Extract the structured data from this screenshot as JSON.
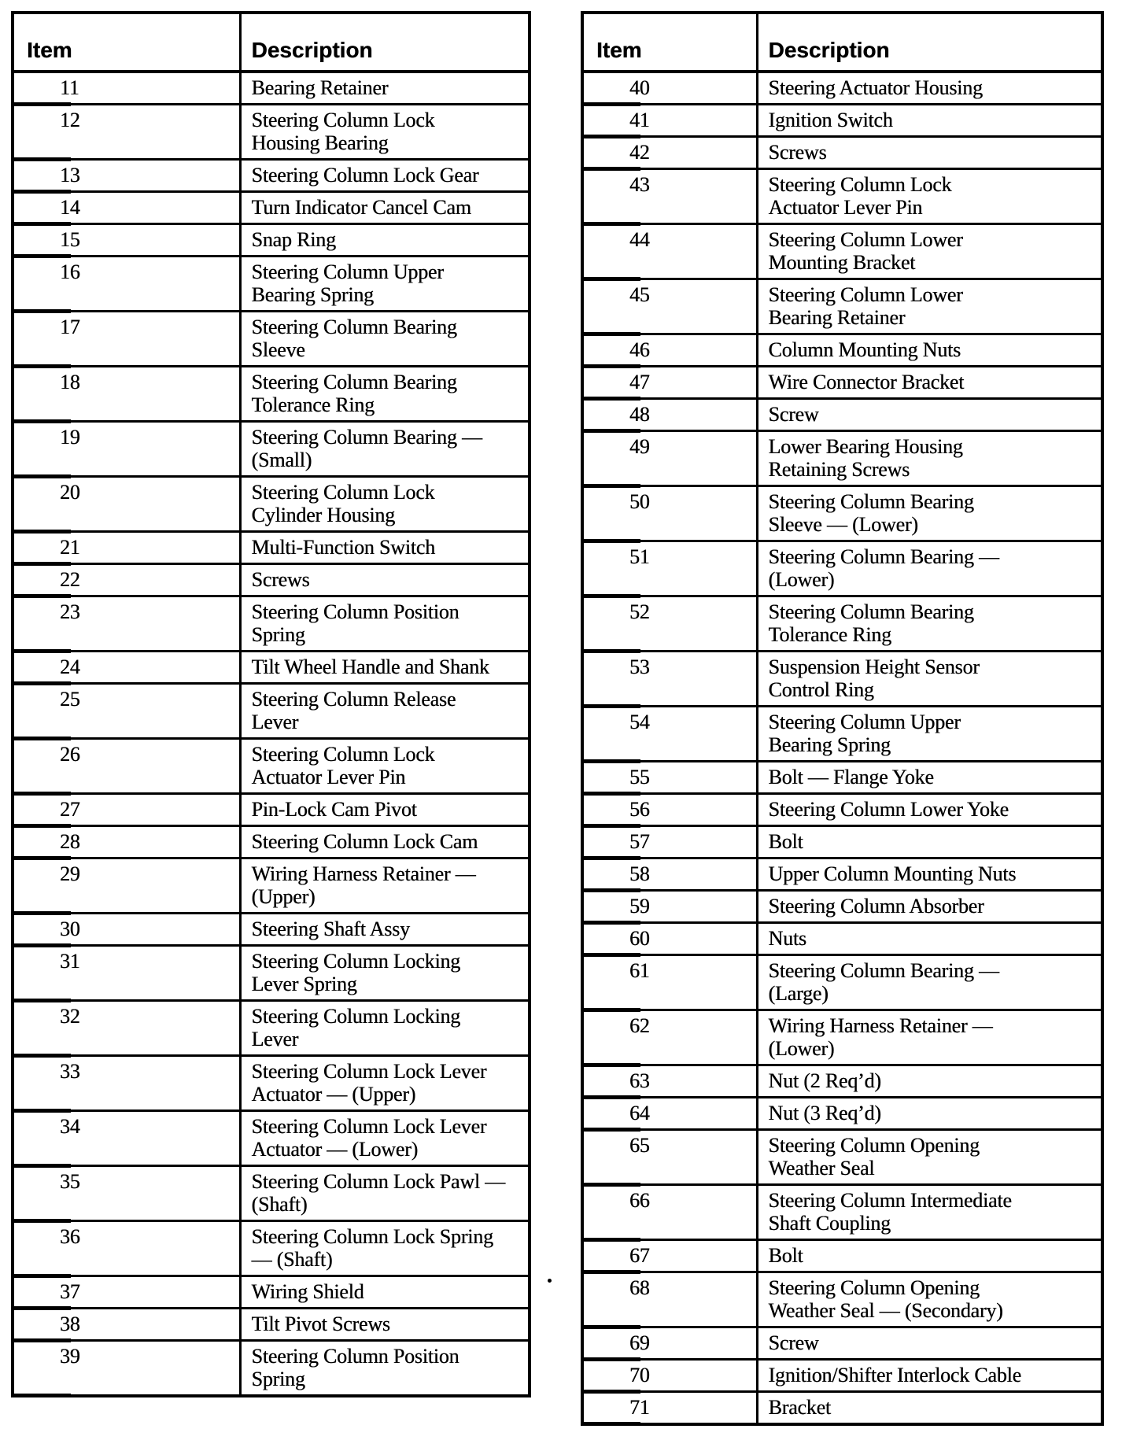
{
  "tables": [
    {
      "id": "left",
      "headers": {
        "item": "Item",
        "description": "Description"
      },
      "rows": [
        {
          "item": "11",
          "description": "Bearing Retainer"
        },
        {
          "item": "12",
          "description": "Steering Column Lock\nHousing Bearing"
        },
        {
          "item": "13",
          "description": "Steering Column Lock Gear"
        },
        {
          "item": "14",
          "description": "Turn Indicator Cancel Cam"
        },
        {
          "item": "15",
          "description": "Snap Ring"
        },
        {
          "item": "16",
          "description": "Steering Column Upper\nBearing Spring"
        },
        {
          "item": "17",
          "description": "Steering Column Bearing\nSleeve"
        },
        {
          "item": "18",
          "description": "Steering Column Bearing\nTolerance Ring"
        },
        {
          "item": "19",
          "description": "Steering Column Bearing —\n(Small)"
        },
        {
          "item": "20",
          "description": "Steering Column Lock\nCylinder Housing"
        },
        {
          "item": "21",
          "description": "Multi-Function Switch"
        },
        {
          "item": "22",
          "description": "Screws"
        },
        {
          "item": "23",
          "description": "Steering Column Position\nSpring"
        },
        {
          "item": "24",
          "description": "Tilt Wheel Handle and Shank"
        },
        {
          "item": "25",
          "description": "Steering Column Release\nLever"
        },
        {
          "item": "26",
          "description": "Steering Column Lock\nActuator Lever Pin"
        },
        {
          "item": "27",
          "description": "Pin-Lock Cam Pivot"
        },
        {
          "item": "28",
          "description": "Steering Column Lock Cam"
        },
        {
          "item": "29",
          "description": "Wiring Harness Retainer —\n(Upper)"
        },
        {
          "item": "30",
          "description": "Steering Shaft Assy"
        },
        {
          "item": "31",
          "description": "Steering Column Locking\nLever Spring"
        },
        {
          "item": "32",
          "description": "Steering Column Locking\nLever"
        },
        {
          "item": "33",
          "description": "Steering Column Lock Lever\nActuator — (Upper)"
        },
        {
          "item": "34",
          "description": "Steering Column Lock Lever\nActuator — (Lower)"
        },
        {
          "item": "35",
          "description": "Steering Column Lock Pawl —\n(Shaft)"
        },
        {
          "item": "36",
          "description": "Steering Column Lock Spring\n— (Shaft)"
        },
        {
          "item": "37",
          "description": "Wiring Shield"
        },
        {
          "item": "38",
          "description": "Tilt Pivot Screws"
        },
        {
          "item": "39",
          "description": "Steering Column Position\nSpring"
        }
      ]
    },
    {
      "id": "right",
      "headers": {
        "item": "Item",
        "description": "Description"
      },
      "rows": [
        {
          "item": "40",
          "description": "Steering Actuator Housing"
        },
        {
          "item": "41",
          "description": "Ignition Switch"
        },
        {
          "item": "42",
          "description": "Screws"
        },
        {
          "item": "43",
          "description": "Steering Column Lock\nActuator Lever Pin"
        },
        {
          "item": "44",
          "description": "Steering Column Lower\nMounting Bracket"
        },
        {
          "item": "45",
          "description": "Steering Column Lower\nBearing Retainer"
        },
        {
          "item": "46",
          "description": "Column Mounting Nuts"
        },
        {
          "item": "47",
          "description": "Wire Connector Bracket"
        },
        {
          "item": "48",
          "description": "Screw"
        },
        {
          "item": "49",
          "description": "Lower Bearing Housing\nRetaining Screws"
        },
        {
          "item": "50",
          "description": "Steering Column Bearing\nSleeve — (Lower)"
        },
        {
          "item": "51",
          "description": "Steering Column Bearing —\n(Lower)"
        },
        {
          "item": "52",
          "description": "Steering Column Bearing\nTolerance Ring"
        },
        {
          "item": "53",
          "description": "Suspension Height Sensor\nControl Ring"
        },
        {
          "item": "54",
          "description": "Steering Column Upper\nBearing Spring"
        },
        {
          "item": "55",
          "description": "Bolt — Flange Yoke"
        },
        {
          "item": "56",
          "description": "Steering Column Lower Yoke"
        },
        {
          "item": "57",
          "description": "Bolt"
        },
        {
          "item": "58",
          "description": "Upper Column Mounting Nuts"
        },
        {
          "item": "59",
          "description": "Steering Column Absorber"
        },
        {
          "item": "60",
          "description": "Nuts"
        },
        {
          "item": "61",
          "description": "Steering Column Bearing —\n(Large)"
        },
        {
          "item": "62",
          "description": "Wiring Harness Retainer —\n(Lower)"
        },
        {
          "item": "63",
          "description": "Nut (2 Req’d)"
        },
        {
          "item": "64",
          "description": "Nut (3 Req’d)"
        },
        {
          "item": "65",
          "description": "Steering Column Opening\nWeather Seal"
        },
        {
          "item": "66",
          "description": "Steering Column Intermediate\nShaft Coupling"
        },
        {
          "item": "67",
          "description": "Bolt"
        },
        {
          "item": "68",
          "description": "Steering Column Opening\nWeather Seal — (Secondary)"
        },
        {
          "item": "69",
          "description": "Screw"
        },
        {
          "item": "70",
          "description": "Ignition/Shifter Interlock Cable"
        },
        {
          "item": "71",
          "description": "Bracket"
        }
      ]
    }
  ]
}
